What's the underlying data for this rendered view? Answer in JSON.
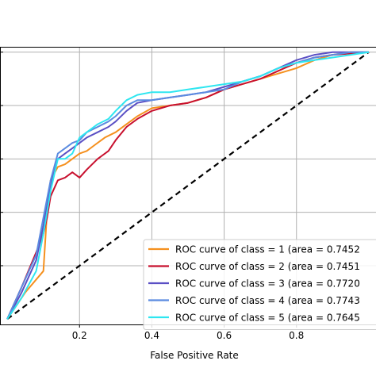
{
  "chart_data": {
    "type": "line",
    "title": "",
    "xlabel": "False Positive Rate",
    "ylabel": "",
    "xlim": [
      -0.02,
      1.02
    ],
    "ylim": [
      -0.02,
      1.02
    ],
    "grid": true,
    "legend_position": "bottom-right",
    "x_ticks": [
      0.2,
      0.4,
      0.6,
      0.8
    ],
    "x_tick_labels": [
      "0.2",
      "0.4",
      "0.6",
      "0.8"
    ],
    "y_ticks": [
      0.2,
      0.4,
      0.6,
      0.8,
      1.0
    ],
    "baseline": {
      "x": [
        0,
        1
      ],
      "y": [
        0,
        1
      ],
      "color": "#000000",
      "style": "dashed"
    },
    "series": [
      {
        "name": "ROC curve of class = 1 (area = 0.7452",
        "color": "#f5901e",
        "x": [
          0,
          0.05,
          0.1,
          0.11,
          0.12,
          0.14,
          0.16,
          0.18,
          0.2,
          0.22,
          0.24,
          0.27,
          0.3,
          0.33,
          0.36,
          0.4,
          0.45,
          0.5,
          0.55,
          0.6,
          0.65,
          0.7,
          0.75,
          0.8,
          0.85,
          0.9,
          0.95,
          1.0
        ],
        "y": [
          0,
          0.1,
          0.18,
          0.4,
          0.52,
          0.57,
          0.58,
          0.6,
          0.62,
          0.63,
          0.65,
          0.68,
          0.7,
          0.73,
          0.76,
          0.79,
          0.8,
          0.81,
          0.83,
          0.86,
          0.88,
          0.9,
          0.92,
          0.94,
          0.97,
          0.99,
          1.0,
          1.0
        ]
      },
      {
        "name": "ROC curve of class = 2 (area = 0.7451",
        "color": "#c8102e",
        "x": [
          0,
          0.04,
          0.08,
          0.1,
          0.11,
          0.12,
          0.14,
          0.16,
          0.18,
          0.2,
          0.22,
          0.25,
          0.28,
          0.3,
          0.33,
          0.36,
          0.4,
          0.45,
          0.5,
          0.55,
          0.6,
          0.65,
          0.7,
          0.75,
          0.8,
          0.85,
          0.9,
          1.0
        ],
        "y": [
          0,
          0.12,
          0.25,
          0.32,
          0.38,
          0.46,
          0.52,
          0.53,
          0.55,
          0.53,
          0.56,
          0.6,
          0.63,
          0.67,
          0.72,
          0.75,
          0.78,
          0.8,
          0.81,
          0.83,
          0.86,
          0.88,
          0.9,
          0.93,
          0.96,
          0.98,
          0.99,
          1.0
        ]
      },
      {
        "name": "ROC curve of class = 3 (area = 0.7720",
        "color": "#5a4fc4",
        "x": [
          0,
          0.04,
          0.08,
          0.1,
          0.12,
          0.14,
          0.16,
          0.18,
          0.2,
          0.22,
          0.25,
          0.28,
          0.3,
          0.33,
          0.36,
          0.4,
          0.45,
          0.5,
          0.55,
          0.6,
          0.65,
          0.7,
          0.75,
          0.8,
          0.85,
          0.9,
          0.95,
          1.0
        ],
        "y": [
          0,
          0.1,
          0.22,
          0.35,
          0.5,
          0.6,
          0.62,
          0.64,
          0.66,
          0.68,
          0.7,
          0.72,
          0.74,
          0.78,
          0.81,
          0.82,
          0.83,
          0.84,
          0.85,
          0.87,
          0.89,
          0.91,
          0.94,
          0.97,
          0.99,
          1.0,
          1.0,
          1.0
        ]
      },
      {
        "name": "ROC curve of class = 4 (area = 0.7743",
        "color": "#5b8be0",
        "x": [
          0,
          0.04,
          0.08,
          0.1,
          0.12,
          0.14,
          0.16,
          0.18,
          0.2,
          0.22,
          0.25,
          0.28,
          0.3,
          0.33,
          0.36,
          0.4,
          0.45,
          0.5,
          0.55,
          0.6,
          0.65,
          0.7,
          0.75,
          0.8,
          0.85,
          0.9,
          0.95,
          1.0
        ],
        "y": [
          0,
          0.12,
          0.24,
          0.38,
          0.52,
          0.62,
          0.64,
          0.66,
          0.67,
          0.7,
          0.72,
          0.74,
          0.76,
          0.8,
          0.82,
          0.82,
          0.83,
          0.84,
          0.85,
          0.86,
          0.89,
          0.91,
          0.94,
          0.96,
          0.98,
          0.99,
          1.0,
          1.0
        ]
      },
      {
        "name": "ROC curve of class = 5 (area = 0.7645",
        "color": "#2ee6f0",
        "x": [
          0,
          0.04,
          0.08,
          0.1,
          0.12,
          0.14,
          0.16,
          0.18,
          0.2,
          0.22,
          0.25,
          0.28,
          0.3,
          0.33,
          0.36,
          0.4,
          0.45,
          0.5,
          0.55,
          0.6,
          0.65,
          0.7,
          0.75,
          0.8,
          0.85,
          0.9,
          0.95,
          1.0
        ],
        "y": [
          0,
          0.08,
          0.18,
          0.32,
          0.48,
          0.6,
          0.6,
          0.62,
          0.68,
          0.7,
          0.73,
          0.75,
          0.78,
          0.82,
          0.84,
          0.85,
          0.85,
          0.86,
          0.87,
          0.88,
          0.89,
          0.91,
          0.94,
          0.96,
          0.97,
          0.98,
          0.99,
          1.0
        ]
      }
    ]
  }
}
